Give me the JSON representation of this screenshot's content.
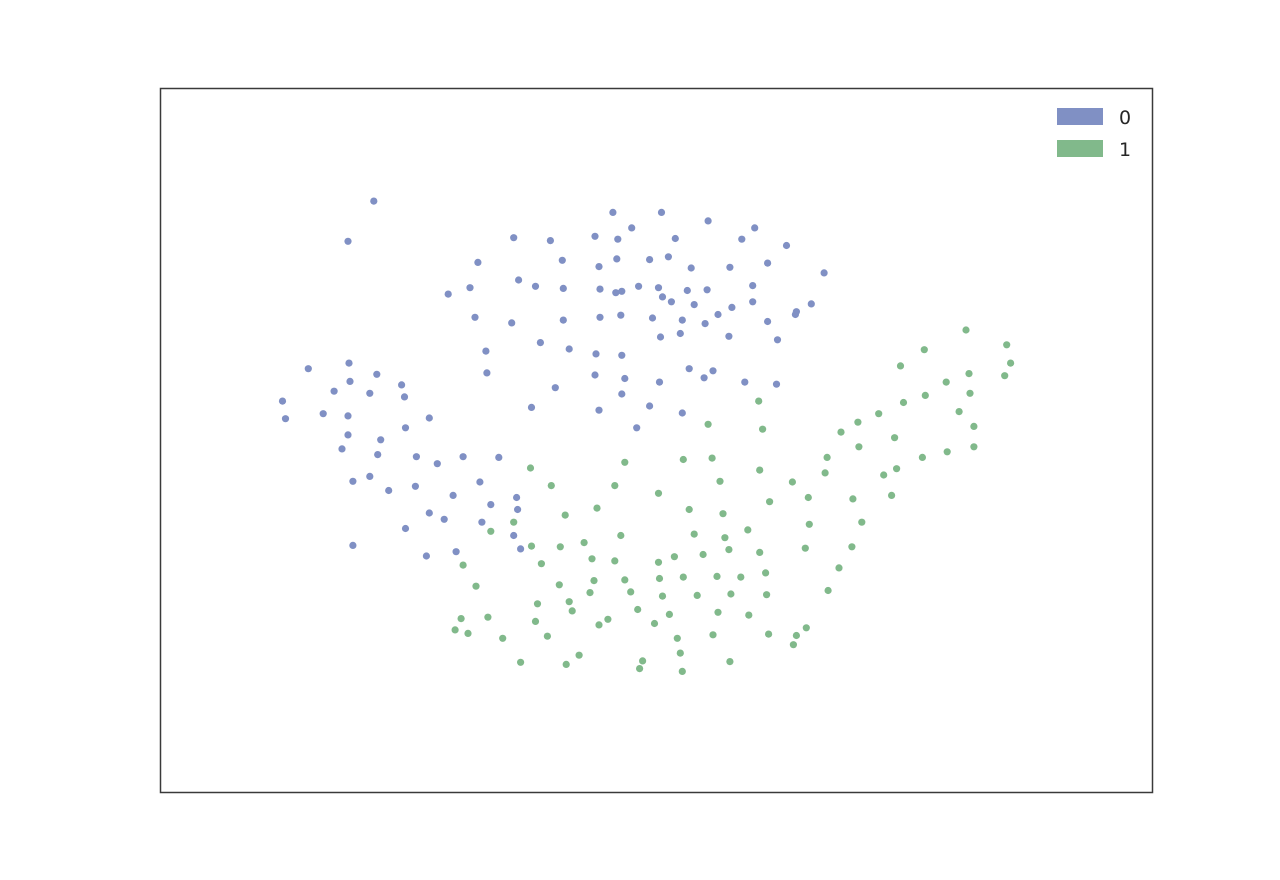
{
  "chart_data": {
    "type": "scatter",
    "title": "",
    "xlabel": "",
    "ylabel": "",
    "xlim": [
      0,
      100
    ],
    "ylim": [
      0,
      100
    ],
    "grid": false,
    "axes_ticks": "none",
    "legend_position": "top-right",
    "series": [
      {
        "name": "0",
        "color": "#8090c4",
        "points": [
          [
            21.5,
            84.0
          ],
          [
            18.9,
            78.3
          ],
          [
            45.6,
            82.4
          ],
          [
            50.5,
            82.4
          ],
          [
            55.2,
            81.2
          ],
          [
            59.9,
            80.2
          ],
          [
            47.5,
            80.2
          ],
          [
            35.6,
            78.8
          ],
          [
            39.3,
            78.4
          ],
          [
            43.8,
            79.0
          ],
          [
            46.1,
            78.6
          ],
          [
            51.9,
            78.7
          ],
          [
            58.6,
            78.6
          ],
          [
            63.1,
            77.7
          ],
          [
            32.0,
            75.3
          ],
          [
            40.5,
            75.6
          ],
          [
            44.2,
            74.7
          ],
          [
            46.0,
            75.8
          ],
          [
            49.3,
            75.7
          ],
          [
            51.2,
            76.1
          ],
          [
            53.5,
            74.5
          ],
          [
            57.4,
            74.6
          ],
          [
            61.2,
            75.2
          ],
          [
            66.9,
            73.8
          ],
          [
            31.2,
            71.7
          ],
          [
            36.1,
            72.8
          ],
          [
            37.8,
            71.9
          ],
          [
            40.6,
            71.6
          ],
          [
            44.3,
            71.5
          ],
          [
            46.5,
            71.2
          ],
          [
            48.2,
            71.9
          ],
          [
            50.2,
            71.7
          ],
          [
            53.1,
            71.3
          ],
          [
            55.1,
            71.4
          ],
          [
            59.7,
            72.0
          ],
          [
            29.0,
            70.8
          ],
          [
            45.9,
            71.0
          ],
          [
            50.6,
            70.4
          ],
          [
            51.5,
            69.7
          ],
          [
            53.8,
            69.3
          ],
          [
            57.6,
            68.9
          ],
          [
            31.7,
            67.5
          ],
          [
            35.4,
            66.7
          ],
          [
            40.6,
            67.1
          ],
          [
            44.3,
            67.5
          ],
          [
            46.4,
            67.8
          ],
          [
            49.6,
            67.4
          ],
          [
            52.6,
            67.1
          ],
          [
            56.2,
            67.9
          ],
          [
            59.7,
            69.7
          ],
          [
            61.2,
            66.9
          ],
          [
            64.1,
            68.3
          ],
          [
            65.6,
            69.4
          ],
          [
            32.8,
            62.7
          ],
          [
            38.3,
            63.9
          ],
          [
            41.2,
            63.0
          ],
          [
            43.9,
            62.3
          ],
          [
            46.5,
            62.1
          ],
          [
            50.4,
            64.7
          ],
          [
            52.4,
            65.2
          ],
          [
            54.9,
            66.6
          ],
          [
            57.3,
            64.8
          ],
          [
            62.2,
            64.3
          ],
          [
            64.0,
            67.9
          ],
          [
            14.9,
            60.2
          ],
          [
            12.3,
            55.6
          ],
          [
            19.1,
            58.4
          ],
          [
            19.0,
            61.0
          ],
          [
            21.8,
            59.4
          ],
          [
            24.3,
            57.9
          ],
          [
            17.5,
            57.0
          ],
          [
            21.1,
            56.7
          ],
          [
            24.6,
            56.2
          ],
          [
            16.4,
            53.8
          ],
          [
            12.6,
            53.1
          ],
          [
            18.9,
            53.5
          ],
          [
            27.1,
            53.2
          ],
          [
            32.9,
            59.6
          ],
          [
            39.8,
            57.5
          ],
          [
            37.4,
            54.7
          ],
          [
            43.8,
            59.3
          ],
          [
            46.8,
            58.8
          ],
          [
            50.3,
            58.3
          ],
          [
            53.3,
            60.2
          ],
          [
            55.7,
            59.9
          ],
          [
            54.8,
            58.9
          ],
          [
            58.9,
            58.3
          ],
          [
            62.1,
            58.0
          ],
          [
            46.5,
            56.6
          ],
          [
            49.3,
            54.9
          ],
          [
            44.2,
            54.3
          ],
          [
            48.0,
            51.8
          ],
          [
            52.6,
            53.9
          ],
          [
            18.9,
            50.8
          ],
          [
            22.2,
            50.1
          ],
          [
            24.7,
            51.8
          ],
          [
            18.3,
            48.8
          ],
          [
            21.9,
            48.0
          ],
          [
            25.8,
            47.7
          ],
          [
            27.9,
            46.7
          ],
          [
            30.5,
            47.7
          ],
          [
            34.1,
            47.6
          ],
          [
            19.4,
            44.2
          ],
          [
            21.1,
            44.9
          ],
          [
            23.0,
            42.9
          ],
          [
            25.7,
            43.5
          ],
          [
            29.5,
            42.2
          ],
          [
            32.2,
            44.1
          ],
          [
            33.3,
            40.9
          ],
          [
            32.4,
            38.4
          ],
          [
            27.1,
            39.7
          ],
          [
            28.6,
            38.8
          ],
          [
            35.9,
            41.9
          ],
          [
            19.4,
            35.1
          ],
          [
            24.7,
            37.5
          ],
          [
            35.6,
            36.5
          ],
          [
            36.0,
            40.2
          ],
          [
            26.8,
            33.6
          ],
          [
            36.3,
            34.6
          ],
          [
            29.8,
            34.2
          ]
        ]
      },
      {
        "name": "1",
        "color": "#81b98b",
        "points": [
          [
            81.2,
            65.7
          ],
          [
            85.3,
            63.6
          ],
          [
            77.0,
            62.9
          ],
          [
            74.6,
            60.6
          ],
          [
            81.5,
            59.5
          ],
          [
            79.2,
            58.3
          ],
          [
            85.7,
            61.0
          ],
          [
            85.1,
            59.2
          ],
          [
            81.6,
            56.7
          ],
          [
            77.1,
            56.4
          ],
          [
            80.5,
            54.1
          ],
          [
            82.0,
            52.0
          ],
          [
            74.9,
            55.4
          ],
          [
            72.4,
            53.8
          ],
          [
            68.6,
            51.2
          ],
          [
            70.3,
            52.6
          ],
          [
            82.0,
            49.1
          ],
          [
            79.3,
            48.4
          ],
          [
            74.0,
            50.4
          ],
          [
            70.4,
            49.1
          ],
          [
            76.8,
            47.6
          ],
          [
            74.2,
            46.0
          ],
          [
            72.9,
            45.1
          ],
          [
            67.2,
            47.6
          ],
          [
            60.3,
            55.6
          ],
          [
            55.2,
            52.3
          ],
          [
            60.7,
            51.6
          ],
          [
            55.6,
            47.5
          ],
          [
            52.7,
            47.3
          ],
          [
            46.8,
            46.9
          ],
          [
            37.3,
            46.1
          ],
          [
            67.0,
            45.4
          ],
          [
            63.7,
            44.1
          ],
          [
            60.4,
            45.8
          ],
          [
            56.4,
            44.2
          ],
          [
            50.2,
            42.5
          ],
          [
            45.8,
            43.6
          ],
          [
            39.4,
            43.6
          ],
          [
            73.7,
            42.2
          ],
          [
            69.8,
            41.7
          ],
          [
            65.3,
            41.9
          ],
          [
            61.4,
            41.3
          ],
          [
            56.7,
            39.6
          ],
          [
            53.3,
            40.2
          ],
          [
            44.0,
            40.4
          ],
          [
            40.8,
            39.4
          ],
          [
            35.6,
            38.4
          ],
          [
            33.3,
            37.1
          ],
          [
            70.7,
            38.4
          ],
          [
            65.4,
            38.1
          ],
          [
            59.2,
            37.3
          ],
          [
            56.9,
            36.2
          ],
          [
            53.8,
            36.7
          ],
          [
            46.4,
            36.5
          ],
          [
            42.7,
            35.5
          ],
          [
            40.3,
            34.9
          ],
          [
            37.4,
            35.0
          ],
          [
            69.7,
            34.9
          ],
          [
            65.0,
            34.7
          ],
          [
            60.4,
            34.1
          ],
          [
            57.3,
            34.5
          ],
          [
            54.7,
            33.8
          ],
          [
            51.8,
            33.5
          ],
          [
            50.2,
            32.7
          ],
          [
            45.8,
            32.9
          ],
          [
            43.5,
            33.2
          ],
          [
            38.4,
            32.5
          ],
          [
            68.4,
            31.9
          ],
          [
            61.0,
            31.2
          ],
          [
            58.5,
            30.6
          ],
          [
            56.1,
            30.7
          ],
          [
            52.7,
            30.6
          ],
          [
            50.3,
            30.4
          ],
          [
            46.8,
            30.2
          ],
          [
            43.7,
            30.1
          ],
          [
            40.2,
            29.5
          ],
          [
            30.5,
            32.3
          ],
          [
            31.8,
            29.3
          ],
          [
            67.3,
            28.7
          ],
          [
            61.1,
            28.1
          ],
          [
            57.5,
            28.2
          ],
          [
            54.1,
            28.0
          ],
          [
            50.6,
            27.9
          ],
          [
            47.4,
            28.5
          ],
          [
            43.3,
            28.4
          ],
          [
            41.2,
            27.1
          ],
          [
            38.0,
            26.8
          ],
          [
            65.1,
            23.4
          ],
          [
            59.3,
            25.2
          ],
          [
            56.2,
            25.6
          ],
          [
            51.3,
            25.3
          ],
          [
            48.1,
            26.0
          ],
          [
            45.1,
            24.6
          ],
          [
            41.5,
            25.8
          ],
          [
            37.8,
            24.3
          ],
          [
            33.0,
            24.9
          ],
          [
            34.5,
            21.9
          ],
          [
            31.0,
            22.6
          ],
          [
            39.0,
            22.2
          ],
          [
            44.2,
            23.8
          ],
          [
            49.8,
            24.0
          ],
          [
            52.1,
            21.9
          ],
          [
            55.7,
            22.4
          ],
          [
            61.3,
            22.5
          ],
          [
            63.8,
            21.0
          ],
          [
            57.4,
            18.6
          ],
          [
            52.4,
            19.8
          ],
          [
            48.3,
            17.6
          ],
          [
            52.6,
            17.2
          ],
          [
            48.6,
            18.7
          ],
          [
            42.2,
            19.5
          ],
          [
            36.3,
            18.5
          ],
          [
            40.9,
            18.2
          ],
          [
            29.7,
            23.1
          ],
          [
            30.3,
            24.7
          ],
          [
            64.1,
            22.3
          ]
        ]
      }
    ]
  }
}
